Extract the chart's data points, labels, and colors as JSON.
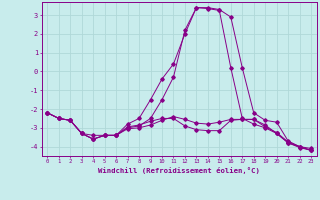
{
  "xlabel": "Windchill (Refroidissement éolien,°C)",
  "bg_color": "#c8ecec",
  "grid_color": "#b0d8d8",
  "line_color": "#880088",
  "xlim": [
    -0.5,
    23.5
  ],
  "ylim": [
    -4.5,
    3.7
  ],
  "yticks": [
    -4,
    -3,
    -2,
    -1,
    0,
    1,
    2,
    3
  ],
  "xticks": [
    0,
    1,
    2,
    3,
    4,
    5,
    6,
    7,
    8,
    9,
    10,
    11,
    12,
    13,
    14,
    15,
    16,
    17,
    18,
    19,
    20,
    21,
    22,
    23
  ],
  "series": [
    [
      -2.2,
      -2.5,
      -2.6,
      -3.3,
      -3.4,
      -3.4,
      -3.4,
      -2.8,
      -2.5,
      -1.5,
      -0.4,
      0.4,
      2.0,
      3.4,
      3.4,
      3.3,
      2.9,
      0.2,
      -2.2,
      -2.6,
      -2.7,
      -3.7,
      -4.0,
      -4.1
    ],
    [
      -2.2,
      -2.5,
      -2.6,
      -3.3,
      -3.6,
      -3.4,
      -3.4,
      -3.0,
      -2.9,
      -2.5,
      -1.5,
      -0.3,
      2.2,
      3.4,
      3.35,
      3.25,
      0.2,
      -2.5,
      -2.8,
      -3.0,
      -3.3,
      -3.8,
      -4.0,
      -4.2
    ],
    [
      -2.2,
      -2.5,
      -2.6,
      -3.3,
      -3.6,
      -3.4,
      -3.4,
      -2.95,
      -2.85,
      -2.65,
      -2.5,
      -2.5,
      -2.9,
      -3.1,
      -3.15,
      -3.15,
      -2.6,
      -2.55,
      -2.55,
      -2.95,
      -3.25,
      -3.75,
      -4.0,
      -4.2
    ],
    [
      -2.2,
      -2.5,
      -2.6,
      -3.3,
      -3.6,
      -3.4,
      -3.4,
      -3.05,
      -3.0,
      -2.85,
      -2.6,
      -2.4,
      -2.55,
      -2.75,
      -2.8,
      -2.7,
      -2.55,
      -2.55,
      -2.55,
      -2.85,
      -3.3,
      -3.8,
      -4.05,
      -4.2
    ]
  ]
}
